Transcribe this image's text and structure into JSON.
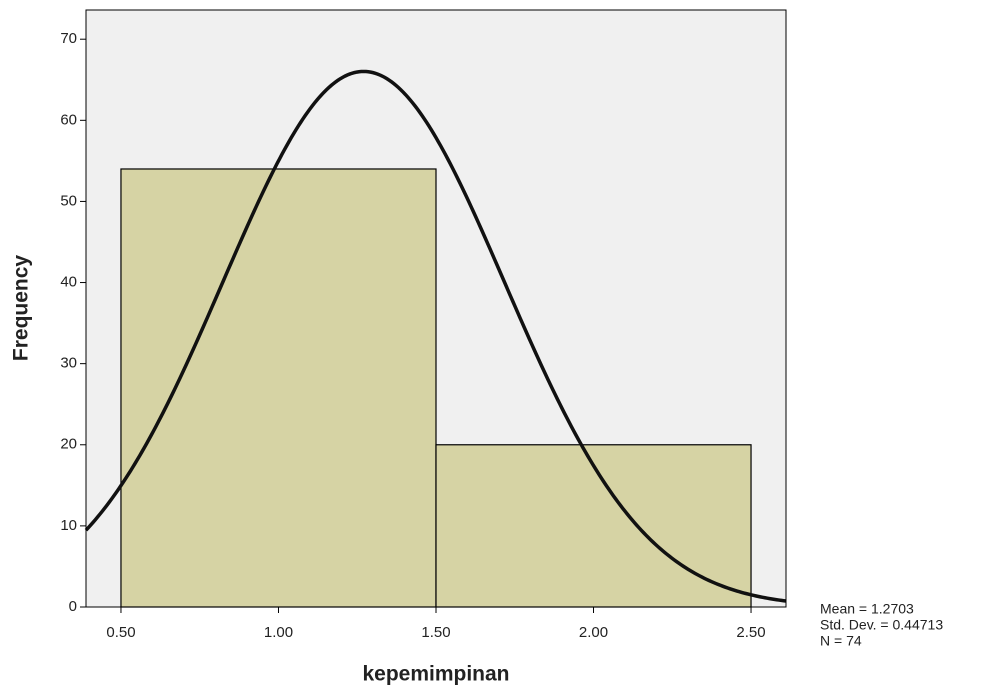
{
  "chart_data": {
    "type": "histogram",
    "x_label": "kepemimpinan",
    "y_label": "Frequency",
    "bins": [
      0.5,
      1.5,
      2.5
    ],
    "values": [
      54,
      20
    ],
    "color": "#d6d3a4",
    "xlim": [
      0.389,
      2.611
    ],
    "ylim": [
      0,
      73.6
    ],
    "xticks": [
      {
        "value": 0.5,
        "label": "0.50"
      },
      {
        "value": 1.0,
        "label": "1.00"
      },
      {
        "value": 1.5,
        "label": "1.50"
      },
      {
        "value": 2.0,
        "label": "2.00"
      },
      {
        "value": 2.5,
        "label": "2.50"
      }
    ],
    "yticks": [
      0,
      10,
      20,
      30,
      40,
      50,
      60,
      70
    ],
    "normal_curve": true,
    "stats": [
      {
        "value": 1.2703,
        "label": "Mean = 1.2703"
      },
      {
        "value": 0.44713,
        "label": "Std. Dev. = 0.44713"
      },
      {
        "value": 74,
        "label": "N = 74"
      }
    ]
  }
}
